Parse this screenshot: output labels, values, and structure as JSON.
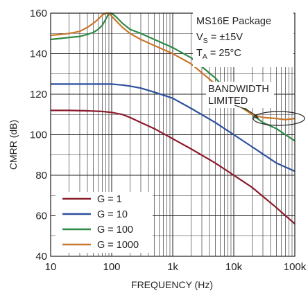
{
  "chart_data": {
    "type": "line",
    "xlabel": "FREQUENCY (Hz)",
    "ylabel": "CMRR (dB)",
    "xscale": "log",
    "xlim": [
      10,
      100000
    ],
    "ylim": [
      40,
      160
    ],
    "grid": true,
    "xticks": [
      {
        "value": 10,
        "label": "10"
      },
      {
        "value": 100,
        "label": "100"
      },
      {
        "value": 1000,
        "label": "1k"
      },
      {
        "value": 10000,
        "label": "10k"
      },
      {
        "value": 100000,
        "label": "100k"
      }
    ],
    "yticks": [
      40,
      60,
      80,
      100,
      120,
      140,
      160
    ],
    "annotation": {
      "line1": "MS16E Package",
      "vs_main": "V",
      "vs_sub": "S",
      "vs_rest": " = ±15V",
      "ta_main": "T",
      "ta_sub": "A",
      "ta_rest": " = 25°C"
    },
    "bandwidth_note": {
      "line1": "BANDWIDTH",
      "line2": "LIMITED"
    },
    "legend_position": "bottom-left",
    "series": [
      {
        "name": "G = 1",
        "color": "#8b1a2b",
        "x": [
          10,
          20,
          40,
          70,
          100,
          150,
          200,
          300,
          500,
          1000,
          2000,
          5000,
          10000,
          20000,
          50000,
          100000
        ],
        "y": [
          112,
          112,
          111.8,
          111.5,
          111,
          110,
          108.5,
          106,
          103,
          98,
          93,
          86,
          80,
          74,
          64,
          56
        ]
      },
      {
        "name": "G = 10",
        "color": "#2c4f9e",
        "x": [
          10,
          20,
          50,
          100,
          150,
          200,
          300,
          500,
          1000,
          2000,
          5000,
          10000,
          20000,
          50000,
          100000
        ],
        "y": [
          125,
          125,
          125,
          125,
          124.5,
          124,
          123,
          121,
          118,
          113,
          106,
          100,
          94,
          86,
          82
        ]
      },
      {
        "name": "G = 100",
        "color": "#2e8b45",
        "x": [
          10,
          20,
          30,
          40,
          50,
          60,
          70,
          80,
          90,
          100,
          120,
          150,
          200,
          300,
          500,
          1000,
          2000,
          5000,
          10000,
          20000,
          30000,
          50000,
          70000,
          100000
        ],
        "y": [
          147,
          148,
          148.5,
          149.5,
          150.5,
          152,
          154,
          157,
          160,
          160,
          158,
          155,
          152,
          150,
          147,
          143,
          138,
          128,
          118,
          110,
          106,
          103,
          100,
          97
        ]
      },
      {
        "name": "G = 1000",
        "color": "#c8762a",
        "x": [
          10,
          20,
          30,
          40,
          50,
          60,
          70,
          80,
          90,
          100,
          120,
          150,
          200,
          300,
          500,
          1000,
          2000,
          5000,
          10000,
          20000,
          30000,
          50000,
          70000,
          100000
        ],
        "y": [
          149,
          150,
          151,
          153,
          155,
          157,
          159,
          160,
          160,
          158.5,
          156,
          153,
          150,
          147,
          144,
          140,
          135,
          125,
          116,
          110,
          108.5,
          108,
          107.5,
          108
        ]
      }
    ]
  }
}
